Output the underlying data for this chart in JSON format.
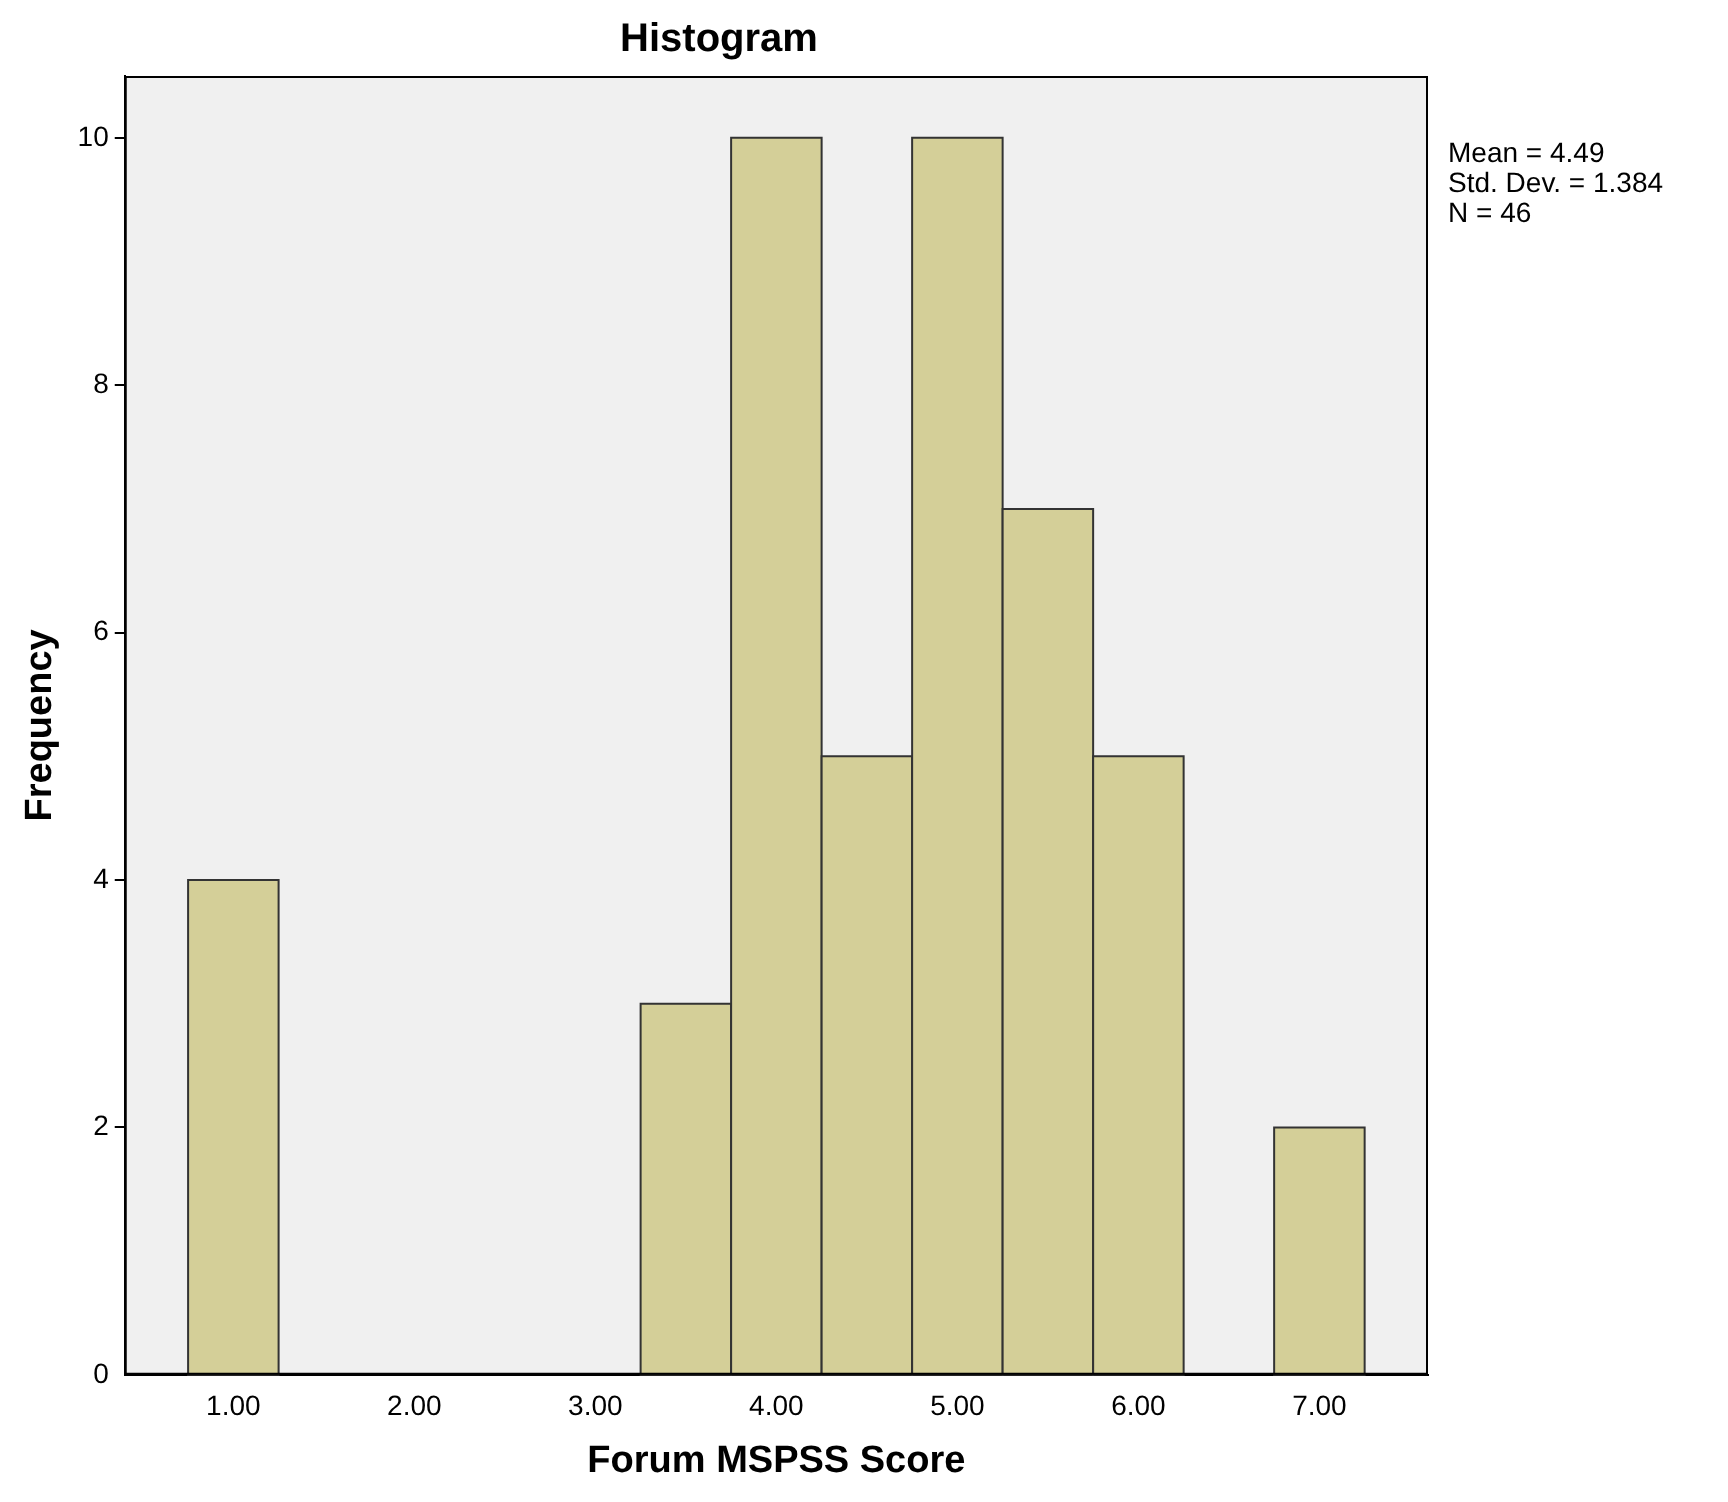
{
  "chart_data": {
    "type": "histogram",
    "title": "Histogram",
    "xlabel": "Forum MSPSS Score",
    "ylabel": "Frequency",
    "bins": [
      0.75,
      1.25,
      3.25,
      3.75,
      4.25,
      4.75,
      5.25,
      5.75,
      6.25,
      6.75,
      7.25
    ],
    "values": [
      4,
      0,
      3,
      10,
      5,
      10,
      7,
      5,
      0,
      2
    ],
    "color": "#d4cf98",
    "xlim": [
      0.4,
      7.6
    ],
    "xticks": [
      {
        "value": 1,
        "label": "1.00"
      },
      {
        "value": 2,
        "label": "2.00"
      },
      {
        "value": 3,
        "label": "3.00"
      },
      {
        "value": 4,
        "label": "4.00"
      },
      {
        "value": 5,
        "label": "5.00"
      },
      {
        "value": 6,
        "label": "6.00"
      },
      {
        "value": 7,
        "label": "7.00"
      }
    ],
    "ylim": [
      0,
      10.5
    ],
    "yticks": [
      0,
      2,
      4,
      6,
      8,
      10
    ],
    "grid": false,
    "legend": false,
    "annotations": [
      "Mean = 4.49",
      "Std. Dev. = 1.384",
      "N = 46"
    ]
  }
}
